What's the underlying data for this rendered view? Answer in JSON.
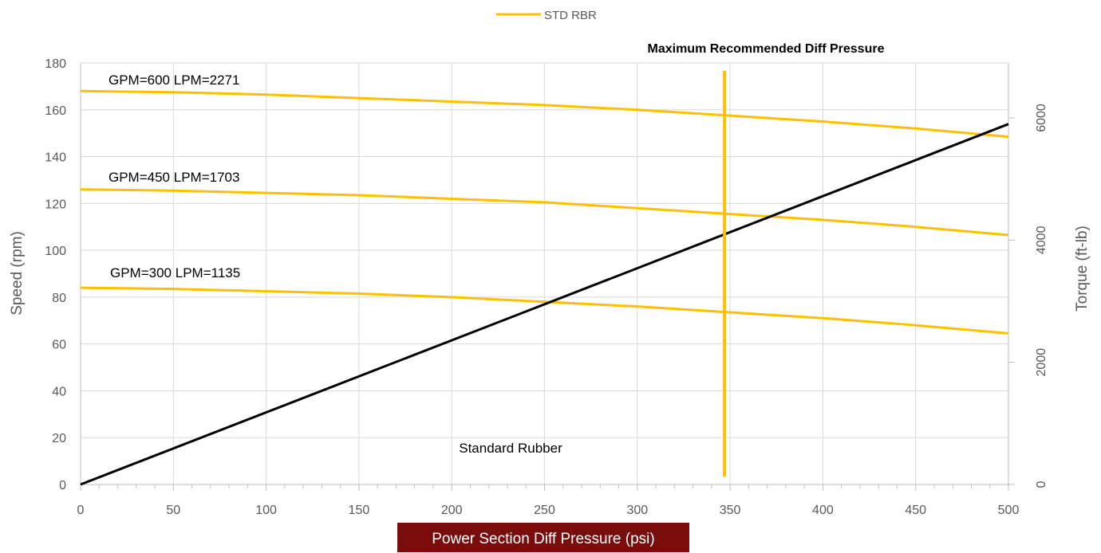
{
  "chart_data": {
    "type": "line",
    "xlabel": "Power Section Diff Pressure (psi)",
    "ylabel": "Speed (rpm)",
    "y2label": "Torque (ft-lb)",
    "xlim": [
      0,
      500
    ],
    "ylim": [
      0,
      180
    ],
    "y2lim": [
      0,
      6900
    ],
    "x_ticks": [
      "0",
      "50",
      "100",
      "150",
      "200",
      "250",
      "300",
      "350",
      "400",
      "450",
      "500"
    ],
    "y_ticks": [
      "0",
      "20",
      "40",
      "60",
      "80",
      "100",
      "120",
      "140",
      "160",
      "180"
    ],
    "y2_ticks": [
      "0",
      "2000",
      "4000",
      "6000"
    ],
    "grid": true,
    "legend": {
      "position": "top-center",
      "entries": [
        {
          "label": "STD RBR",
          "color": "#FFC000"
        }
      ]
    },
    "series": [
      {
        "label": "GPM=600 LPM=2271",
        "color": "#FFC000",
        "axis": "speed",
        "x": [
          0,
          50,
          100,
          150,
          200,
          250,
          300,
          350,
          400,
          450,
          500
        ],
        "y": [
          168,
          167.5,
          166.5,
          165,
          163.5,
          162,
          160,
          157.5,
          155,
          152,
          148.5
        ]
      },
      {
        "label": "GPM=450 LPM=1703",
        "color": "#FFC000",
        "axis": "speed",
        "x": [
          0,
          50,
          100,
          150,
          200,
          250,
          300,
          350,
          400,
          450,
          500
        ],
        "y": [
          126,
          125.5,
          124.5,
          123.5,
          122,
          120.5,
          118,
          115.5,
          113,
          110,
          106.5
        ]
      },
      {
        "label": "GPM=300 LPM=1135",
        "color": "#FFC000",
        "axis": "speed",
        "x": [
          0,
          50,
          100,
          150,
          200,
          250,
          300,
          350,
          400,
          450,
          500
        ],
        "y": [
          84,
          83.5,
          82.5,
          81.5,
          80,
          78,
          76,
          73.5,
          71,
          68,
          64.5
        ]
      },
      {
        "label": "Standard Rubber",
        "color": "#000000",
        "axis": "torque",
        "x": [
          0,
          500
        ],
        "y": [
          0,
          5900
        ]
      }
    ],
    "max_diff_pressure": {
      "label": "Maximum Recommended Diff Pressure",
      "x": 347,
      "color": "#FFC000"
    }
  }
}
